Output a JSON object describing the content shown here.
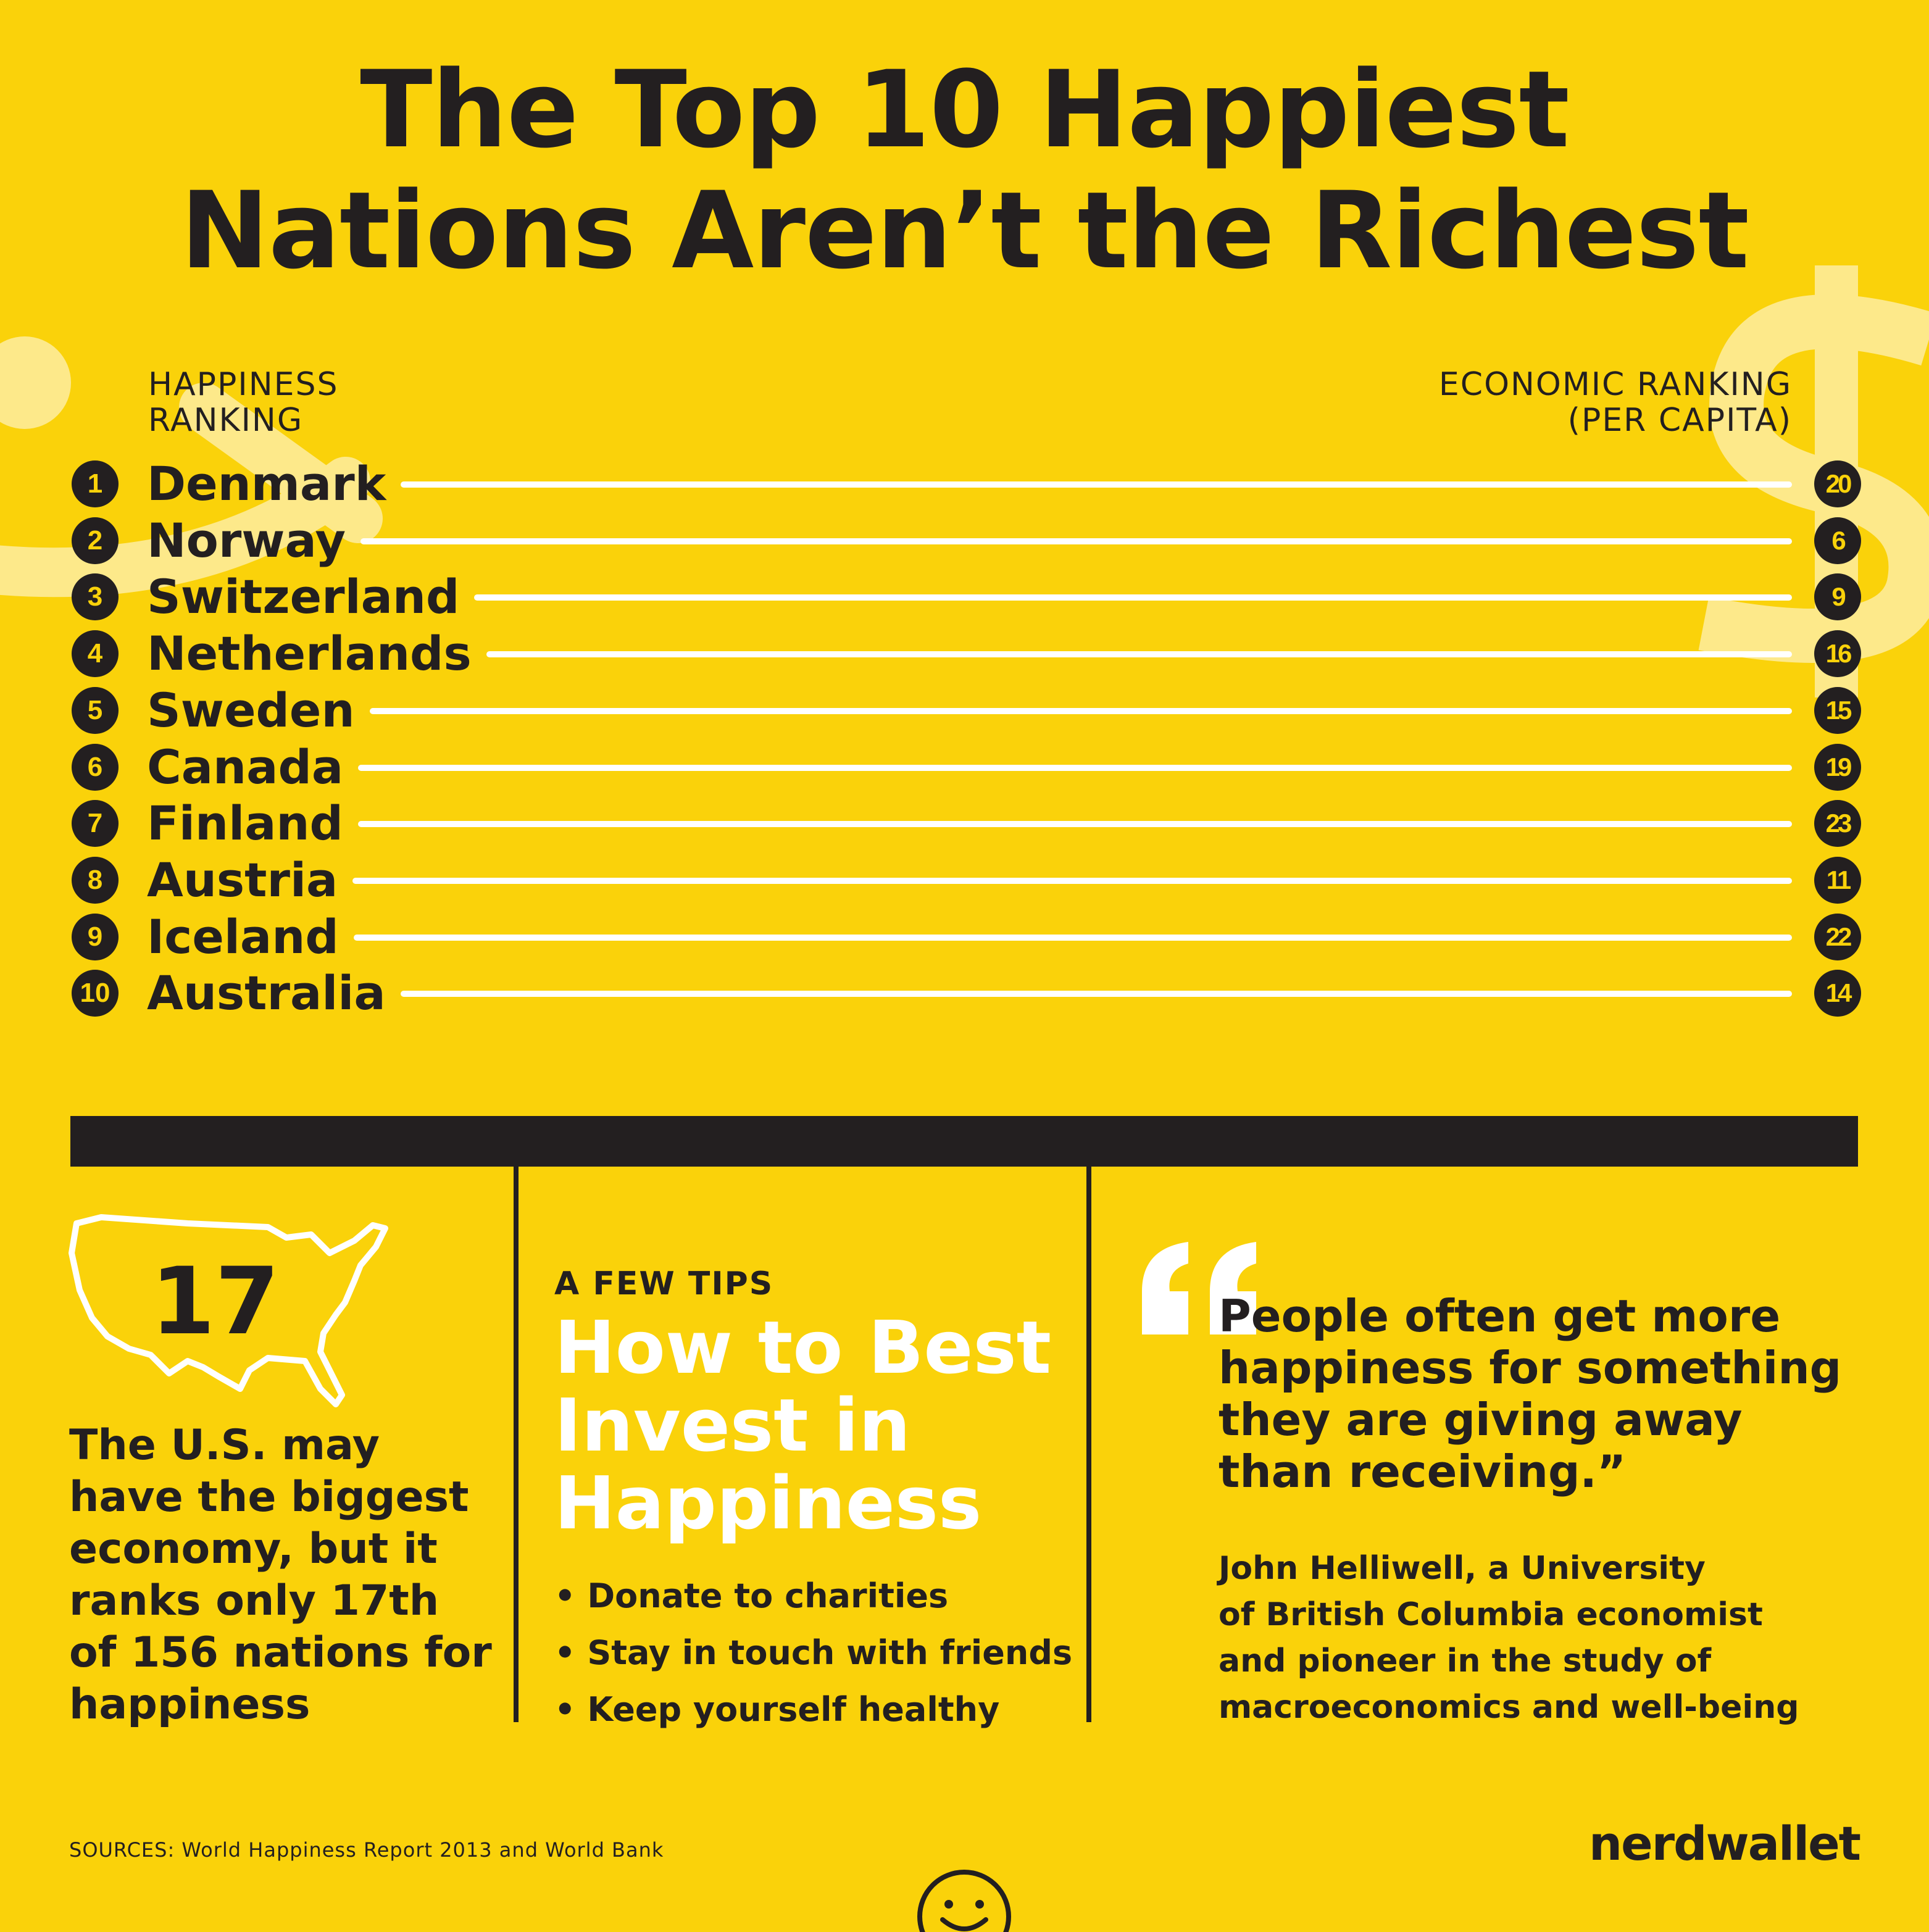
{
  "title": {
    "line1": "The Top 10 Happiest",
    "line2": "Nations Aren’t the Richest"
  },
  "left_header": {
    "line1": "HAPPINESS",
    "line2": "RANKING"
  },
  "right_header": {
    "line1": "ECONOMIC RANKING",
    "line2": "(PER CAPITA)"
  },
  "rankings": [
    {
      "rank": "1",
      "country": "Denmark",
      "economic_rank": "20"
    },
    {
      "rank": "2",
      "country": "Norway",
      "economic_rank": "6"
    },
    {
      "rank": "3",
      "country": "Switzerland",
      "economic_rank": "9"
    },
    {
      "rank": "4",
      "country": "Netherlands",
      "economic_rank": "16"
    },
    {
      "rank": "5",
      "country": "Sweden",
      "economic_rank": "15"
    },
    {
      "rank": "6",
      "country": "Canada",
      "economic_rank": "19"
    },
    {
      "rank": "7",
      "country": "Finland",
      "economic_rank": "23"
    },
    {
      "rank": "8",
      "country": "Austria",
      "economic_rank": "11"
    },
    {
      "rank": "9",
      "country": "Iceland",
      "economic_rank": "22"
    },
    {
      "rank": "10",
      "country": "Australia",
      "economic_rank": "14"
    }
  ],
  "us_panel": {
    "number": "17",
    "text_lines": [
      "The U.S. may",
      "have the biggest",
      "economy, but it",
      "ranks only 17th",
      "of 156 nations for",
      "happiness"
    ]
  },
  "tips_panel": {
    "kicker": "A FEW TIPS",
    "title_lines": [
      "How to Best",
      "Invest in",
      "Happiness"
    ],
    "tips": [
      "• Donate to charities",
      "• Stay in touch with friends",
      "• Keep yourself healthy"
    ]
  },
  "quote_panel": {
    "quote_lines": [
      "People often get more",
      "happiness for something",
      "they are giving away",
      "than receiving.”"
    ],
    "attribution_lines": [
      "John Helliwell, a University",
      "of British Columbia economist",
      "and pioneer in the study of",
      "macroeconomics and well-being"
    ]
  },
  "sources": "SOURCES: World Happiness Report 2013 and World Bank",
  "brand": "nerdwallet",
  "colors": {
    "background": "#fad20a",
    "text": "#231f20",
    "highlight": "#ffffff",
    "decoration": "#fde98a"
  },
  "icons": [
    "dollar-sign-icon",
    "us-map-icon",
    "quote-mark-icon",
    "smiley-face-icon"
  ]
}
